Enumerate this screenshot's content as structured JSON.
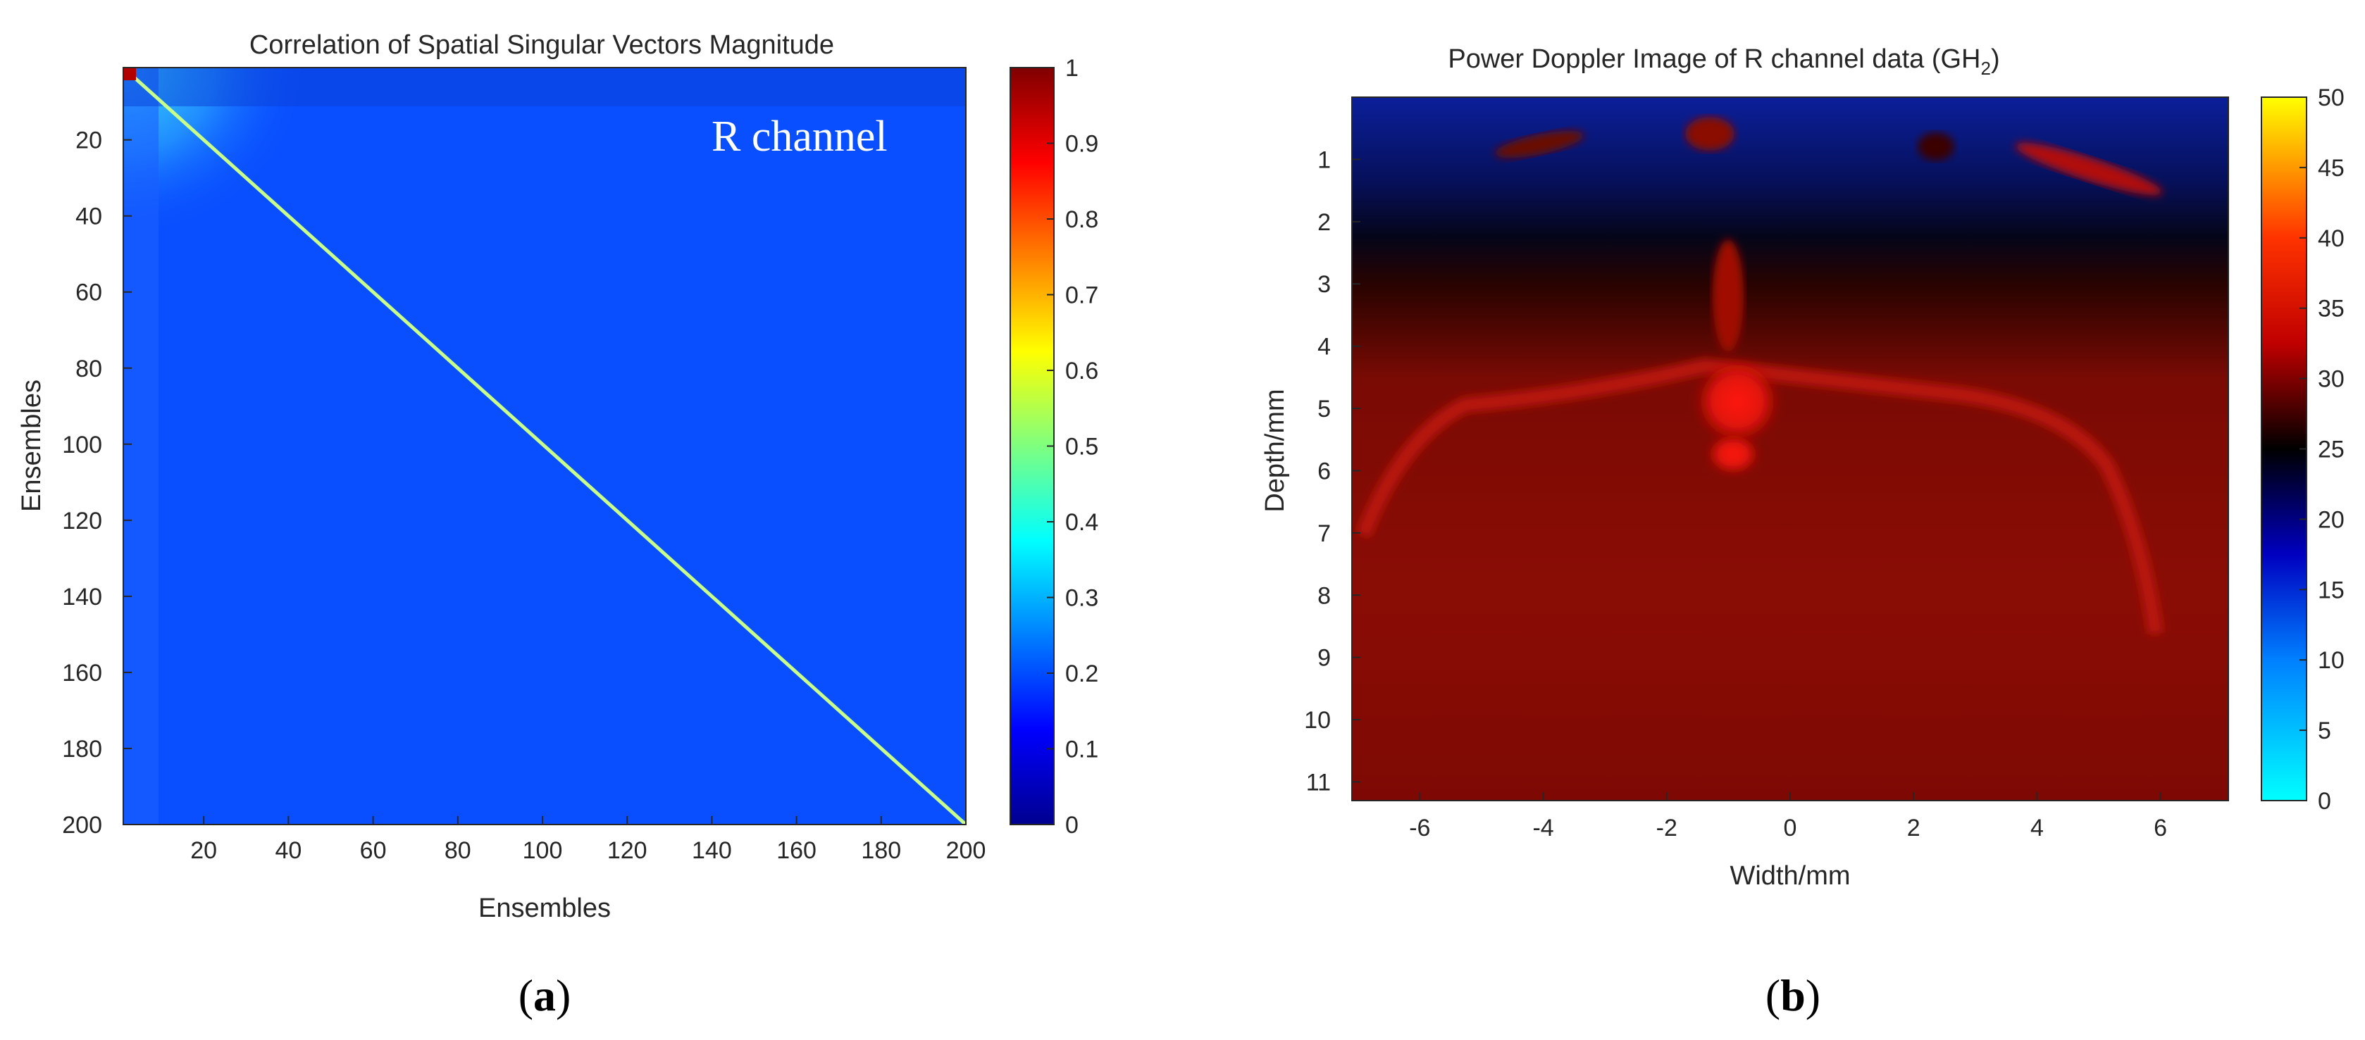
{
  "chart_data": [
    {
      "type": "heatmap",
      "title": "Correlation of Spatial Singular Vectors Magnitude",
      "xlabel": "Ensembles",
      "ylabel": "Ensembles",
      "xlim": [
        1,
        200
      ],
      "ylim": [
        1,
        200
      ],
      "x_ticks": [
        "20",
        "40",
        "60",
        "80",
        "100",
        "120",
        "140",
        "160",
        "180",
        "200"
      ],
      "y_ticks": [
        "20",
        "40",
        "60",
        "80",
        "100",
        "120",
        "140",
        "160",
        "180",
        "200"
      ],
      "colorbar": {
        "range": [
          0,
          1
        ],
        "ticks": [
          "0",
          "0.1",
          "0.2",
          "0.3",
          "0.4",
          "0.5",
          "0.6",
          "0.7",
          "0.8",
          "0.9",
          "1"
        ],
        "colormap": "jet"
      },
      "description_values": {
        "diagonal_value": 1,
        "off_diagonal_value": 0.15
      },
      "annotation": "R channel",
      "caption": "a"
    },
    {
      "type": "heatmap",
      "title": "Power Doppler Image of R channel data (GH",
      "title_subscript": "2",
      "title_suffix": ")",
      "xlabel": "Width/mm",
      "ylabel": "Depth/mm",
      "xlim": [
        -7.1,
        7.1
      ],
      "ylim": [
        0,
        11.3
      ],
      "x_ticks": [
        "-6",
        "-4",
        "-2",
        "0",
        "2",
        "4",
        "6"
      ],
      "y_ticks": [
        "1",
        "2",
        "3",
        "4",
        "5",
        "6",
        "7",
        "8",
        "9",
        "10",
        "11"
      ],
      "colorbar": {
        "range": [
          0,
          50
        ],
        "ticks": [
          "0",
          "5",
          "10",
          "15",
          "20",
          "25",
          "30",
          "35",
          "40",
          "45",
          "50"
        ],
        "colormap": "diverging cyan-blue-black-red-yellow"
      },
      "caption": "b"
    }
  ],
  "colors": {
    "jet_low": "#00008f",
    "jet_background": "#0a4fff",
    "jet_high": "#800000",
    "doppler_low": "#00ffff",
    "doppler_mid": "#000000",
    "doppler_high": "#ffff00"
  }
}
